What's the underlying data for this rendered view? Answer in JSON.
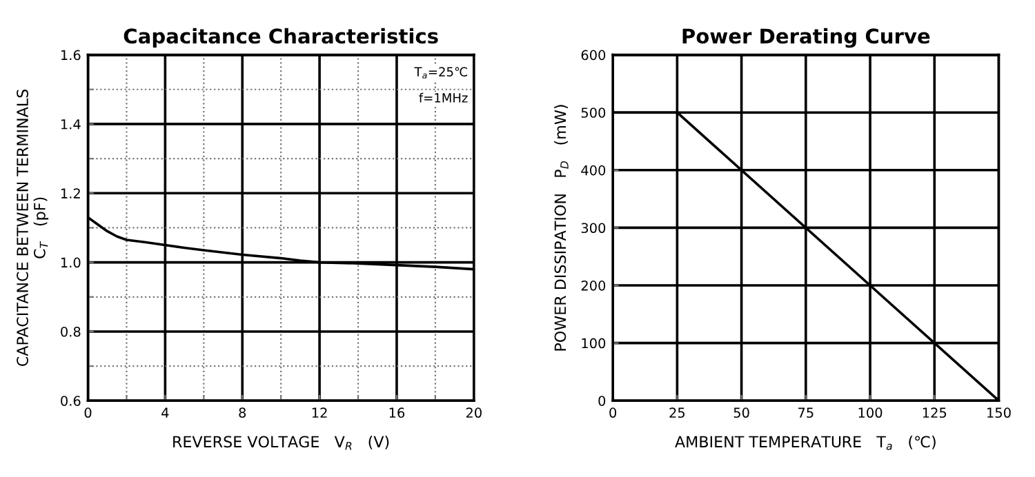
{
  "chart_data": [
    {
      "type": "line",
      "title": "Capacitance Characteristics",
      "xlabel": "REVERSE VOLTAGE   V$_{R}$   (V)",
      "ylabel": "CAPACITANCE BETWEEN TERMINALS\nC$_{T}$   (pF)",
      "annotations": [
        "T$_{a}$=25℃",
        "f=1MHz"
      ],
      "series": [
        {
          "color": "#000000",
          "x": [
            0,
            0.5,
            1,
            1.5,
            2,
            3,
            4,
            5,
            6,
            8,
            10,
            11,
            12,
            14,
            16,
            18,
            20
          ],
          "values": [
            1.13,
            1.11,
            1.09,
            1.075,
            1.065,
            1.058,
            1.05,
            1.042,
            1.035,
            1.022,
            1.012,
            1.005,
            1.0,
            0.997,
            0.992,
            0.987,
            0.98
          ]
        }
      ],
      "xlim": [
        0,
        20
      ],
      "ylim": [
        0.6,
        1.6
      ],
      "xticks": [
        0,
        {
          "value": 2,
          "label": null
        },
        4,
        {
          "value": 6,
          "label": null
        },
        8,
        {
          "value": 10,
          "label": null
        },
        12,
        {
          "value": 14,
          "label": null
        },
        16,
        {
          "value": 18,
          "label": null
        },
        20
      ],
      "yticks": [
        0.6,
        {
          "value": 0.7,
          "label": null
        },
        0.8,
        {
          "value": 0.9,
          "label": null
        },
        {
          "value": 1,
          "label": "1.0"
        },
        {
          "value": 1.1,
          "label": null
        },
        1.2,
        {
          "value": 1.3,
          "label": null
        },
        1.4,
        {
          "value": 1.5,
          "label": null
        },
        1.6
      ],
      "grid": true,
      "marker": "none",
      "line_style": "solid"
    },
    {
      "type": "line",
      "title": "Power Derating Curve",
      "xlabel": "AMBIENT TEMPERATURE   T$_{a}$   (℃)",
      "ylabel": "POWER DISSIPATION   P$_{D}$   (mW)",
      "series": [
        {
          "color": "#000000",
          "x": [
            0,
            25,
            150
          ],
          "values": [
            500,
            500,
            0
          ]
        }
      ],
      "xlim": [
        0,
        150
      ],
      "ylim": [
        0,
        600
      ],
      "xticks": [
        0,
        25,
        50,
        75,
        100,
        125,
        150
      ],
      "yticks": [
        0,
        100,
        200,
        300,
        400,
        500,
        600
      ],
      "grid": true,
      "marker": "none",
      "line_style": "solid"
    }
  ]
}
